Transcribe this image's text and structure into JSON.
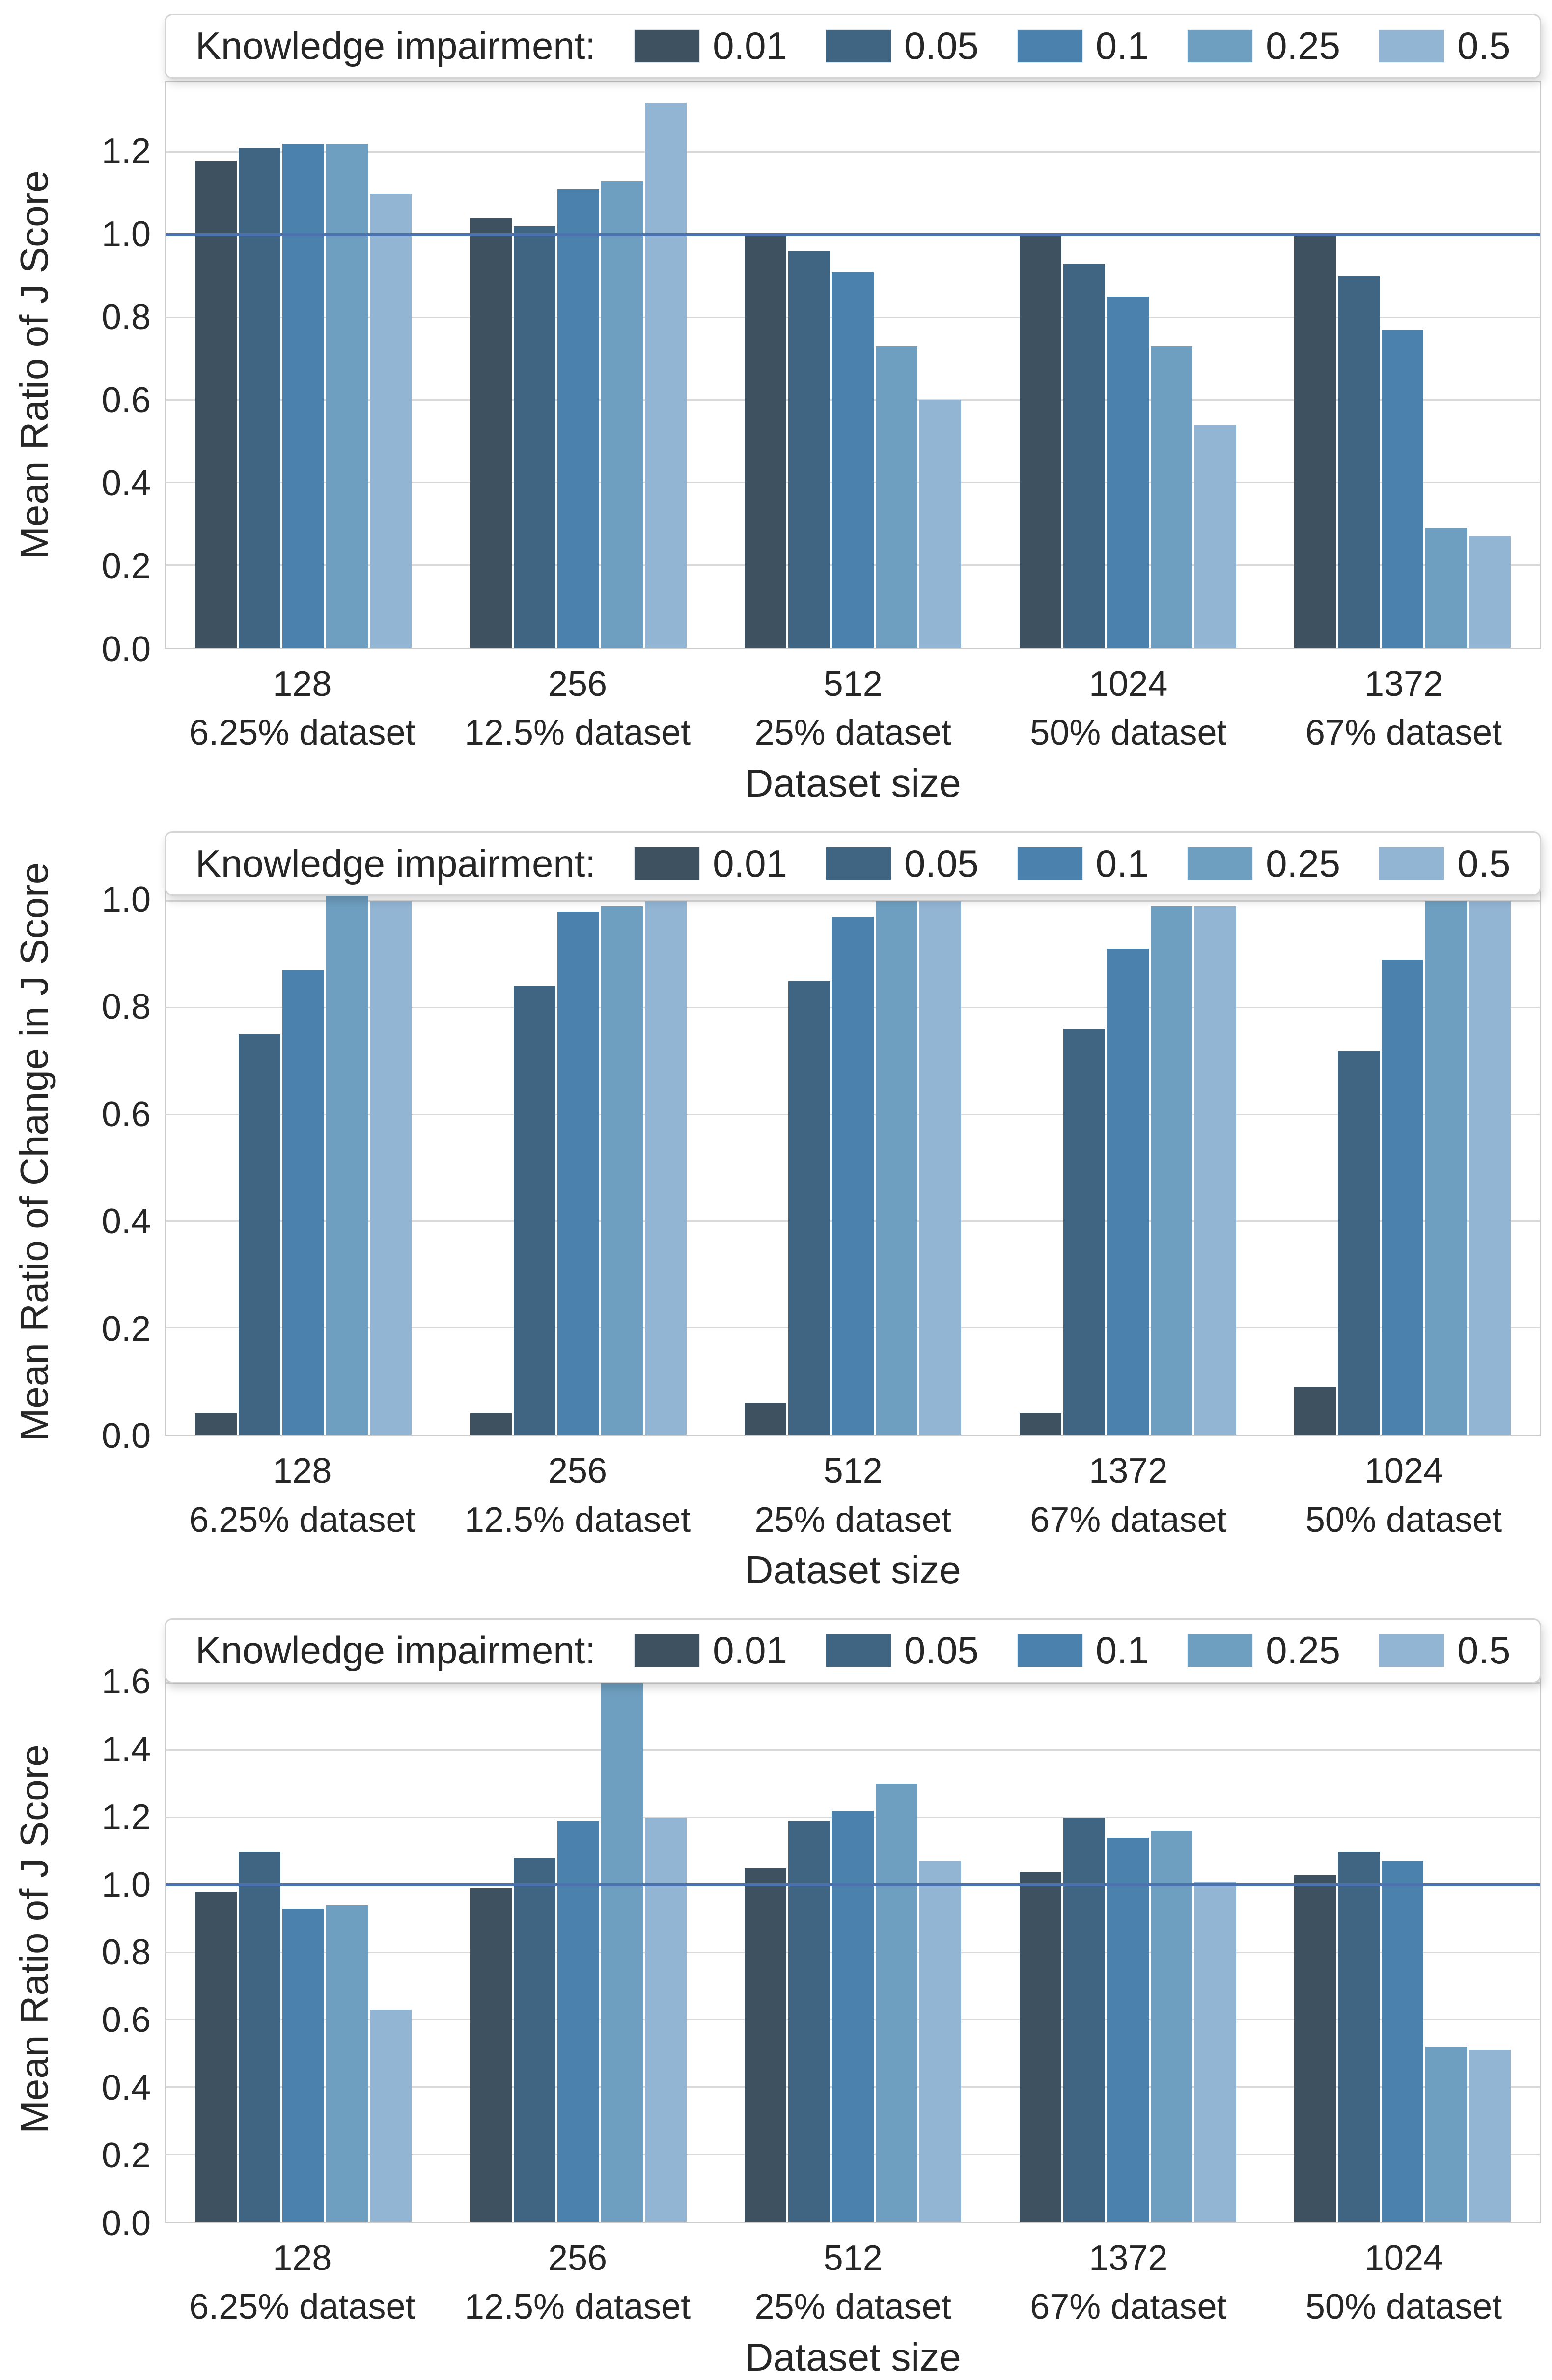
{
  "figure": {
    "background": "#ffffff",
    "text_color": "#262626",
    "grid_color": "#d9d9d9",
    "axes_border_color": "#cccccc",
    "reference_line_color": "#4c72b0",
    "palette": [
      "#3d5161",
      "#3f6583",
      "#4a82ad",
      "#6f9fc0",
      "#92b5d3"
    ],
    "legend": {
      "title": "Knowledge impairment:",
      "labels": [
        "0.01",
        "0.05",
        "0.1",
        "0.25",
        "0.5"
      ]
    }
  },
  "chart_data": [
    {
      "type": "bar",
      "title": "",
      "ylabel": "Mean Ratio of J Score",
      "xlabel": "Dataset size",
      "ylim": [
        0,
        1.37
      ],
      "yticks": [
        0.0,
        0.2,
        0.4,
        0.6,
        0.8,
        1.0,
        1.2
      ],
      "grid": true,
      "reference_line_y": 1.0,
      "legend_position": "top-center",
      "categories": [
        {
          "size": "128",
          "share": "6.25% dataset"
        },
        {
          "size": "256",
          "share": "12.5% dataset"
        },
        {
          "size": "512",
          "share": "25% dataset"
        },
        {
          "size": "1024",
          "share": "50% dataset"
        },
        {
          "size": "1372",
          "share": "67% dataset"
        }
      ],
      "series": [
        {
          "name": "0.01",
          "values": [
            1.18,
            1.04,
            1.0,
            1.0,
            1.0
          ]
        },
        {
          "name": "0.05",
          "values": [
            1.21,
            1.02,
            0.96,
            0.93,
            0.9
          ]
        },
        {
          "name": "0.1",
          "values": [
            1.22,
            1.11,
            0.91,
            0.85,
            0.77
          ]
        },
        {
          "name": "0.25",
          "values": [
            1.22,
            1.13,
            0.73,
            0.73,
            0.29
          ]
        },
        {
          "name": "0.5",
          "values": [
            1.1,
            1.32,
            0.6,
            0.54,
            0.27
          ]
        }
      ]
    },
    {
      "type": "bar",
      "title": "",
      "ylabel": "Mean Ratio of Change in J Score",
      "xlabel": "Dataset size",
      "ylim": [
        0,
        1.06
      ],
      "yticks": [
        0.0,
        0.2,
        0.4,
        0.6,
        0.8,
        1.0
      ],
      "grid": true,
      "reference_line_y": null,
      "legend_position": "top-center",
      "categories": [
        {
          "size": "128",
          "share": "6.25% dataset"
        },
        {
          "size": "256",
          "share": "12.5% dataset"
        },
        {
          "size": "512",
          "share": "25% dataset"
        },
        {
          "size": "1372",
          "share": "67% dataset"
        },
        {
          "size": "1024",
          "share": "50% dataset"
        }
      ],
      "series": [
        {
          "name": "0.01",
          "values": [
            0.04,
            0.04,
            0.06,
            0.04,
            0.09
          ]
        },
        {
          "name": "0.05",
          "values": [
            0.75,
            0.84,
            0.85,
            0.76,
            0.72
          ]
        },
        {
          "name": "0.1",
          "values": [
            0.87,
            0.98,
            0.97,
            0.91,
            0.89
          ]
        },
        {
          "name": "0.25",
          "values": [
            1.02,
            0.99,
            1.0,
            0.99,
            1.0
          ]
        },
        {
          "name": "0.5",
          "values": [
            1.0,
            1.0,
            1.0,
            0.99,
            1.0
          ]
        }
      ]
    },
    {
      "type": "bar",
      "title": "",
      "ylabel": "Mean Ratio of J Score",
      "xlabel": "Dataset size",
      "ylim": [
        0,
        1.68
      ],
      "yticks": [
        0.0,
        0.2,
        0.4,
        0.6,
        0.8,
        1.0,
        1.2,
        1.4,
        1.6
      ],
      "grid": true,
      "reference_line_y": 1.0,
      "legend_position": "top-center",
      "categories": [
        {
          "size": "128",
          "share": "6.25% dataset"
        },
        {
          "size": "256",
          "share": "12.5% dataset"
        },
        {
          "size": "512",
          "share": "25% dataset"
        },
        {
          "size": "1372",
          "share": "67% dataset"
        },
        {
          "size": "1024",
          "share": "50% dataset"
        }
      ],
      "series": [
        {
          "name": "0.01",
          "values": [
            0.98,
            0.99,
            1.05,
            1.04,
            1.03
          ]
        },
        {
          "name": "0.05",
          "values": [
            1.1,
            1.08,
            1.19,
            1.2,
            1.1
          ]
        },
        {
          "name": "0.1",
          "values": [
            0.93,
            1.19,
            1.22,
            1.14,
            1.07
          ]
        },
        {
          "name": "0.25",
          "values": [
            0.94,
            1.61,
            1.3,
            1.16,
            0.52
          ]
        },
        {
          "name": "0.5",
          "values": [
            0.63,
            1.2,
            1.07,
            1.01,
            0.51
          ]
        }
      ]
    }
  ]
}
